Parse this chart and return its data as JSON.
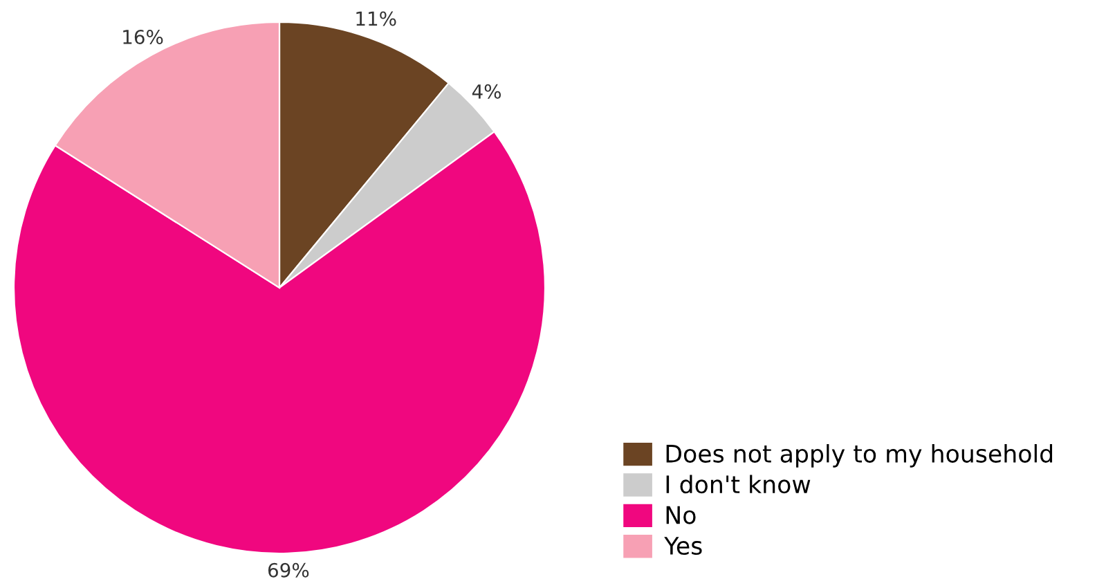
{
  "chart_data": {
    "type": "pie",
    "categories": [
      "Does not apply to my household",
      "I don't know",
      "No",
      "Yes"
    ],
    "values": [
      11,
      4,
      69,
      16
    ],
    "colors": [
      "#6b4423",
      "#cccccc",
      "#f0077f",
      "#f7a0b4"
    ],
    "value_labels": [
      "11%",
      "4%",
      "69%",
      "16%"
    ],
    "legend": "bottom right"
  }
}
